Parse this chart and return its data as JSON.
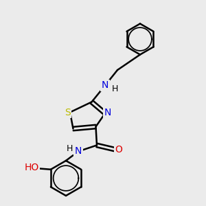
{
  "bg_color": "#ebebeb",
  "bond_color": "#000000",
  "bond_width": 1.8,
  "atom_colors": {
    "N": "#0000dd",
    "O": "#dd0000",
    "S": "#bbbb00",
    "C": "#000000",
    "H": "#000000"
  },
  "font_size": 10,
  "fig_size": [
    3.0,
    3.0
  ],
  "dpi": 100
}
